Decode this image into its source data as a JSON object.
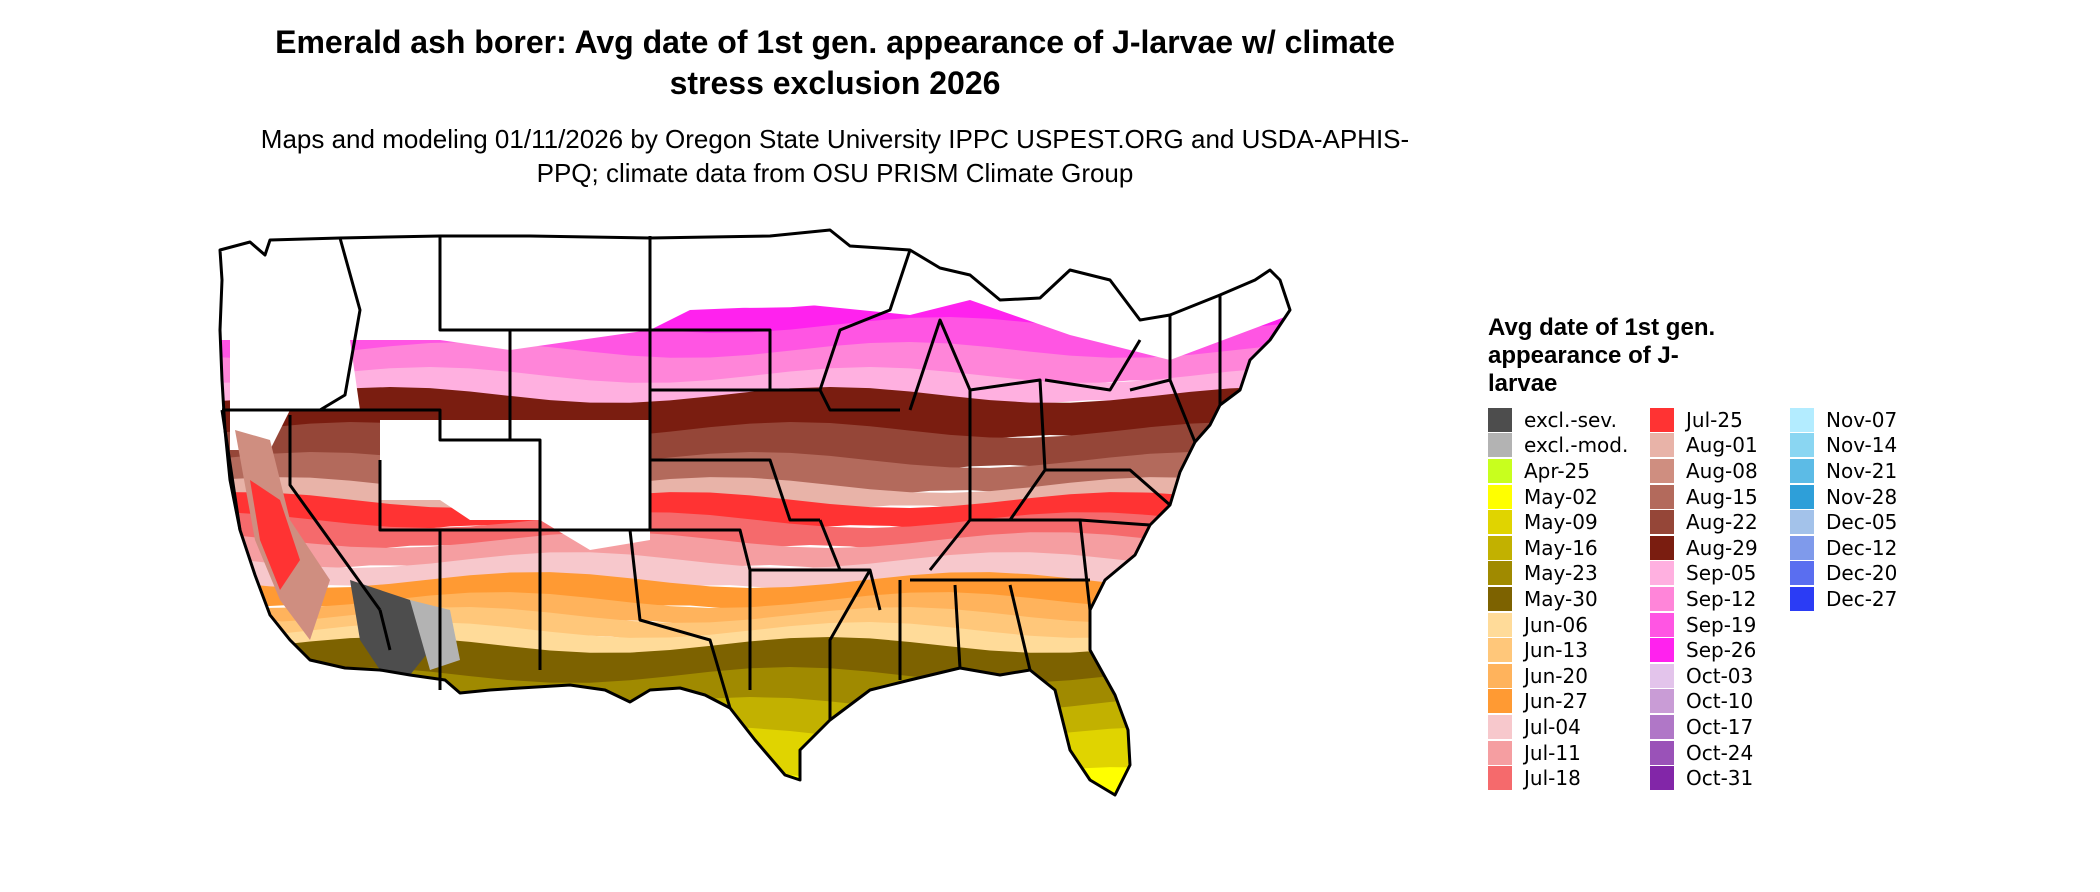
{
  "title": "Emerald ash borer: Avg date of 1st gen. appearance of J-larvae w/ climate stress exclusion 2026",
  "subtitle": "Maps and modeling 01/11/2026 by Oregon State University IPPC USPEST.ORG and USDA-APHIS-PPQ; climate data from OSU PRISM Climate Group",
  "map": {
    "region": "conterminous-united-states",
    "boundaries": "state-outlines",
    "background_color": "#ffffff",
    "outline_color": "#000000"
  },
  "legend": {
    "title": "Avg date of 1st gen. appearance of J-larvae",
    "columns": [
      [
        {
          "label": "excl.-sev.",
          "color": "#4d4d4d"
        },
        {
          "label": "excl.-mod.",
          "color": "#b3b3b3"
        },
        {
          "label": "Apr-25",
          "color": "#c8ff1e"
        },
        {
          "label": "May-02",
          "color": "#ffff00"
        },
        {
          "label": "May-09",
          "color": "#e0d400"
        },
        {
          "label": "May-16",
          "color": "#c2b100"
        },
        {
          "label": "May-23",
          "color": "#a08a00"
        },
        {
          "label": "May-30",
          "color": "#7d6200"
        },
        {
          "label": "Jun-06",
          "color": "#ffdb99"
        },
        {
          "label": "Jun-13",
          "color": "#ffc77a"
        },
        {
          "label": "Jun-20",
          "color": "#ffb35c"
        },
        {
          "label": "Jun-27",
          "color": "#ff9a33"
        },
        {
          "label": "Jul-04",
          "color": "#f7c8cc"
        },
        {
          "label": "Jul-11",
          "color": "#f59ea1"
        },
        {
          "label": "Jul-18",
          "color": "#f56a6c"
        }
      ],
      [
        {
          "label": "Jul-25",
          "color": "#ff3333"
        },
        {
          "label": "Aug-01",
          "color": "#e8b3a8"
        },
        {
          "label": "Aug-08",
          "color": "#cf8e80"
        },
        {
          "label": "Aug-15",
          "color": "#b36a5c"
        },
        {
          "label": "Aug-22",
          "color": "#954638"
        },
        {
          "label": "Aug-29",
          "color": "#7a1d10"
        },
        {
          "label": "Sep-05",
          "color": "#ffb0e0"
        },
        {
          "label": "Sep-12",
          "color": "#ff85d9"
        },
        {
          "label": "Sep-19",
          "color": "#ff55e3"
        },
        {
          "label": "Sep-26",
          "color": "#ff22ee"
        },
        {
          "label": "Oct-03",
          "color": "#e3c4eb"
        },
        {
          "label": "Oct-10",
          "color": "#c99cd6"
        },
        {
          "label": "Oct-17",
          "color": "#b077c7"
        },
        {
          "label": "Oct-24",
          "color": "#9a52b8"
        },
        {
          "label": "Oct-31",
          "color": "#8226a8"
        }
      ],
      [
        {
          "label": "Nov-07",
          "color": "#b3ecff"
        },
        {
          "label": "Nov-14",
          "color": "#8ad6f2"
        },
        {
          "label": "Nov-21",
          "color": "#5cbbe6"
        },
        {
          "label": "Nov-28",
          "color": "#2e9fd9"
        },
        {
          "label": "Dec-05",
          "color": "#a3c2ea"
        },
        {
          "label": "Dec-12",
          "color": "#7f9aeb"
        },
        {
          "label": "Dec-20",
          "color": "#5a6ef0"
        },
        {
          "label": "Dec-27",
          "color": "#2b3cf5"
        }
      ]
    ]
  }
}
